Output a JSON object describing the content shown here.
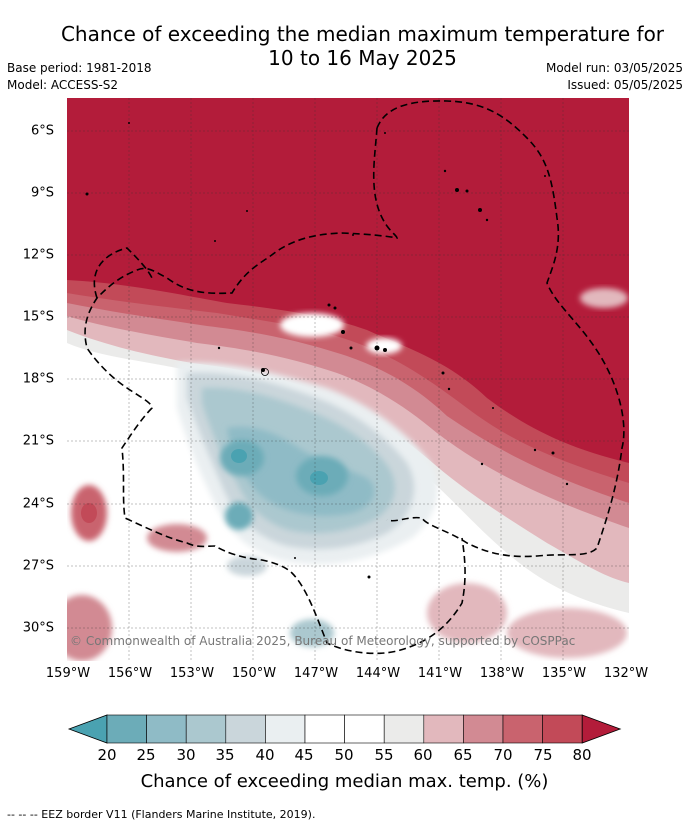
{
  "title": {
    "line1": "Chance of exceeding the median maximum temperature for",
    "line2": "10 to 16 May 2025"
  },
  "meta": {
    "base_period": "Base period: 1981-2018",
    "model": "Model: ACCESS-S2",
    "model_run": "Model run: 03/05/2025",
    "issued": "Issued: 05/05/2025"
  },
  "map": {
    "copyright": "© Commonwealth of Australia 2025, Bureau of Meteorology, supported by COSPPac",
    "lat_labels": [
      "6°S",
      "9°S",
      "12°S",
      "15°S",
      "18°S",
      "21°S",
      "24°S",
      "27°S",
      "30°S"
    ],
    "lon_labels": [
      "159°W",
      "156°W",
      "153°W",
      "150°W",
      "147°W",
      "144°W",
      "141°W",
      "138°W",
      "135°W",
      "132°W"
    ],
    "colors": {
      "c80plus": "#b31c3a",
      "c75": "#c24a58",
      "c70": "#c9636e",
      "c65": "#d28a93",
      "c60": "#e2b8bd",
      "c55": "#ebebea",
      "c50": "#ffffff",
      "c45": "#eaeff1",
      "c40": "#cad6db",
      "c35": "#abc8cf",
      "c30": "#8fbbc6",
      "c25": "#6cacb8",
      "c20": "#4aa2b1"
    }
  },
  "colorbar": {
    "ticks": [
      "20",
      "25",
      "30",
      "35",
      "40",
      "45",
      "50",
      "55",
      "60",
      "65",
      "70",
      "75",
      "80"
    ],
    "colors": [
      "#4aa2b1",
      "#6cacb8",
      "#8fbbc6",
      "#abc8cf",
      "#cad6db",
      "#eaeff1",
      "#ffffff",
      "#ffffff",
      "#ebebea",
      "#e2b8bd",
      "#d28a93",
      "#c9636e",
      "#c24a58",
      "#b31c3a"
    ],
    "label": "Chance of exceeding median max. temp. (%)"
  },
  "legend": {
    "eez": "--  --  -- EEZ border V11 (Flanders Marine Institute, 2019)."
  }
}
